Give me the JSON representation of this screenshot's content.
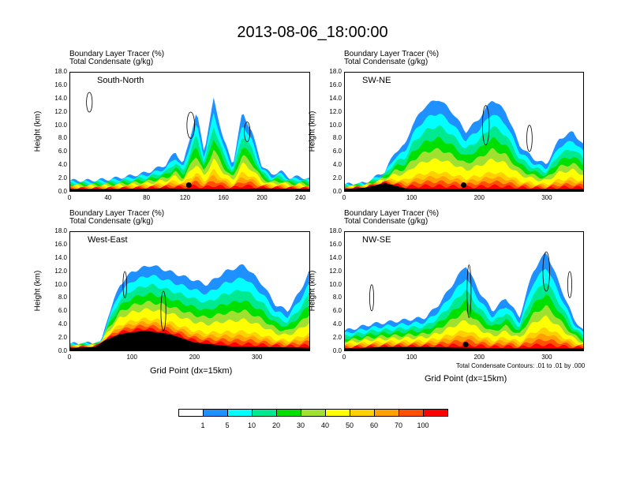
{
  "title": "2013-08-06_18:00:00",
  "colors": {
    "scale": [
      "#ffffff",
      "#1e90ff",
      "#00ffff",
      "#00e890",
      "#00e000",
      "#a0e030",
      "#ffff00",
      "#ffd000",
      "#ffa000",
      "#ff5000",
      "#ff0000"
    ]
  },
  "colorbar": {
    "labels": [
      "1",
      "5",
      "10",
      "20",
      "30",
      "40",
      "50",
      "60",
      "70",
      "100"
    ]
  },
  "contour_note": "Total Condensate Contours: .01 to .01 by .000",
  "chart_data": [
    {
      "type": "heatmap",
      "panel_label": "South-North",
      "title_line1": "Boundary Layer Tracer   (%)",
      "title_line2": "Total Condensate   (g/kg)",
      "ylabel": "Height (km)",
      "xlabel": "",
      "xlim": [
        0,
        250
      ],
      "ylim": [
        0,
        18
      ],
      "xticks": [
        "0",
        "40",
        "80",
        "120",
        "160",
        "200",
        "240"
      ],
      "xtick_values": [
        0,
        40,
        80,
        120,
        160,
        200,
        240
      ],
      "yticks": [
        "0.0",
        "2.0",
        "4.0",
        "6.0",
        "8.0",
        "10.0",
        "12.0",
        "14.0",
        "16.0",
        "18.0"
      ],
      "marker_x": 124,
      "terrain": [
        [
          0,
          0.3
        ],
        [
          50,
          0.3
        ],
        [
          100,
          0.4
        ],
        [
          150,
          0.3
        ],
        [
          200,
          0.4
        ],
        [
          250,
          0.3
        ]
      ],
      "profile": [
        [
          0,
          1.6
        ],
        [
          20,
          1.6
        ],
        [
          40,
          1.8
        ],
        [
          60,
          2.2
        ],
        [
          80,
          2.8
        ],
        [
          100,
          4
        ],
        [
          110,
          6
        ],
        [
          118,
          4
        ],
        [
          125,
          8
        ],
        [
          132,
          12
        ],
        [
          140,
          6
        ],
        [
          150,
          14
        ],
        [
          160,
          8
        ],
        [
          170,
          4
        ],
        [
          180,
          12
        ],
        [
          190,
          9
        ],
        [
          200,
          4
        ],
        [
          210,
          2.5
        ],
        [
          220,
          3
        ],
        [
          230,
          2
        ],
        [
          240,
          2.2
        ],
        [
          250,
          1.8
        ]
      ],
      "red_depth": 0.45,
      "contours": [
        [
          20,
          13.5,
          3,
          1.5
        ],
        [
          126,
          10,
          4,
          2
        ],
        [
          185,
          9,
          3,
          1.5
        ]
      ]
    },
    {
      "type": "heatmap",
      "panel_label": "SW-NE",
      "title_line1": "Boundary Layer Tracer   (%)",
      "title_line2": "Total Condensate   (g/kg)",
      "ylabel": "Height (km)",
      "xlabel": "",
      "xlim": [
        0,
        355
      ],
      "ylim": [
        0,
        18
      ],
      "xticks": [
        "0",
        "100",
        "200",
        "300"
      ],
      "xtick_values": [
        0,
        100,
        200,
        300
      ],
      "yticks": [
        "0.0",
        "2.0",
        "4.0",
        "6.0",
        "8.0",
        "10.0",
        "12.0",
        "14.0",
        "16.0",
        "18.0"
      ],
      "marker_x": 177,
      "terrain": [
        [
          0,
          0.3
        ],
        [
          30,
          0.5
        ],
        [
          60,
          1.2
        ],
        [
          90,
          0.4
        ],
        [
          150,
          0.3
        ],
        [
          250,
          0.3
        ],
        [
          355,
          0.3
        ]
      ],
      "profile": [
        [
          0,
          1
        ],
        [
          30,
          1.2
        ],
        [
          60,
          3
        ],
        [
          75,
          6
        ],
        [
          90,
          7
        ],
        [
          100,
          10
        ],
        [
          120,
          13
        ],
        [
          140,
          14
        ],
        [
          160,
          12
        ],
        [
          180,
          9
        ],
        [
          200,
          11
        ],
        [
          220,
          14
        ],
        [
          240,
          12
        ],
        [
          260,
          7
        ],
        [
          280,
          5
        ],
        [
          300,
          4
        ],
        [
          320,
          8
        ],
        [
          340,
          9
        ],
        [
          355,
          7
        ]
      ],
      "red_depth": 0.4,
      "contours": [
        [
          210,
          10,
          5,
          3
        ],
        [
          275,
          8,
          4,
          2
        ]
      ]
    },
    {
      "type": "heatmap",
      "panel_label": "West-East",
      "title_line1": "Boundary Layer Tracer   (%)",
      "title_line2": "Total Condensate   (g/kg)",
      "ylabel": "Height (km)",
      "xlabel": "Grid Point (dx=15km)",
      "xlim": [
        0,
        385
      ],
      "ylim": [
        0,
        18
      ],
      "xticks": [
        "0",
        "100",
        "200",
        "300"
      ],
      "xtick_values": [
        0,
        100,
        200,
        300
      ],
      "yticks": [
        "0.0",
        "2.0",
        "4.0",
        "6.0",
        "8.0",
        "10.0",
        "12.0",
        "14.0",
        "16.0",
        "18.0"
      ],
      "marker_x": 195,
      "terrain": [
        [
          0,
          0.4
        ],
        [
          40,
          0.5
        ],
        [
          55,
          1.5
        ],
        [
          80,
          2.5
        ],
        [
          120,
          3
        ],
        [
          160,
          2.5
        ],
        [
          200,
          1.2
        ],
        [
          260,
          0.6
        ],
        [
          385,
          0.4
        ]
      ],
      "profile": [
        [
          0,
          1
        ],
        [
          50,
          1.2
        ],
        [
          60,
          5
        ],
        [
          80,
          10
        ],
        [
          100,
          12
        ],
        [
          130,
          13
        ],
        [
          160,
          12
        ],
        [
          190,
          11
        ],
        [
          220,
          10
        ],
        [
          250,
          12
        ],
        [
          280,
          13
        ],
        [
          310,
          10
        ],
        [
          330,
          7
        ],
        [
          350,
          6
        ],
        [
          370,
          9
        ],
        [
          385,
          12
        ]
      ],
      "red_depth": 0.4,
      "contours": [
        [
          88,
          10,
          3,
          2
        ],
        [
          150,
          6,
          4,
          3
        ]
      ]
    },
    {
      "type": "heatmap",
      "panel_label": "NW-SE",
      "title_line1": "Boundary Layer Tracer   (%)",
      "title_line2": "Total Condensate   (g/kg)",
      "ylabel": "Height (km)",
      "xlabel": "Grid Point (dx=15km)",
      "xlim": [
        0,
        355
      ],
      "ylim": [
        0,
        18
      ],
      "xticks": [
        "0",
        "100",
        "200",
        "300"
      ],
      "xtick_values": [
        0,
        100,
        200,
        300
      ],
      "yticks": [
        "0.0",
        "2.0",
        "4.0",
        "6.0",
        "8.0",
        "10.0",
        "12.0",
        "14.0",
        "16.0",
        "18.0"
      ],
      "marker_x": 180,
      "terrain": [
        [
          0,
          0.3
        ],
        [
          60,
          0.5
        ],
        [
          120,
          0.5
        ],
        [
          180,
          0.4
        ],
        [
          260,
          0.3
        ],
        [
          355,
          0.3
        ]
      ],
      "profile": [
        [
          0,
          3
        ],
        [
          40,
          4
        ],
        [
          80,
          4.5
        ],
        [
          120,
          5
        ],
        [
          140,
          7
        ],
        [
          160,
          10
        ],
        [
          180,
          13
        ],
        [
          200,
          9
        ],
        [
          220,
          6
        ],
        [
          240,
          8
        ],
        [
          260,
          5
        ],
        [
          280,
          12
        ],
        [
          300,
          15
        ],
        [
          320,
          10
        ],
        [
          340,
          5
        ],
        [
          355,
          3
        ]
      ],
      "red_depth": 0.45,
      "contours": [
        [
          40,
          8,
          3,
          2
        ],
        [
          185,
          9,
          3,
          4
        ],
        [
          300,
          12,
          5,
          3
        ],
        [
          335,
          10,
          3,
          2
        ]
      ]
    }
  ]
}
